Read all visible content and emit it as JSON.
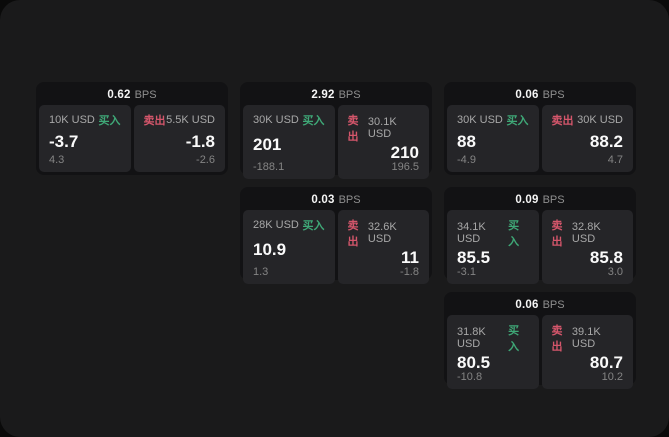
{
  "labels": {
    "bps_unit": "BPS",
    "buy": "买入",
    "sell": "卖出"
  },
  "colors": {
    "buy": "#3fa877",
    "sell": "#d5566b"
  },
  "cards": [
    {
      "row": 1,
      "col": 1,
      "bps": "0.62",
      "buy": {
        "size": "10K USD",
        "value": "-3.7",
        "sub": "4.3"
      },
      "sell": {
        "size": "5.5K USD",
        "value": "-1.8",
        "sub": "-2.6"
      }
    },
    {
      "row": 1,
      "col": 2,
      "bps": "2.92",
      "buy": {
        "size": "30K USD",
        "value": "201",
        "sub": "-188.1"
      },
      "sell": {
        "size": "30.1K USD",
        "value": "210",
        "sub": "196.5"
      }
    },
    {
      "row": 1,
      "col": 3,
      "bps": "0.06",
      "buy": {
        "size": "30K USD",
        "value": "88",
        "sub": "-4.9"
      },
      "sell": {
        "size": "30K USD",
        "value": "88.2",
        "sub": "4.7"
      }
    },
    {
      "row": 2,
      "col": 2,
      "bps": "0.03",
      "buy": {
        "size": "28K USD",
        "value": "10.9",
        "sub": "1.3"
      },
      "sell": {
        "size": "32.6K USD",
        "value": "11",
        "sub": "-1.8"
      }
    },
    {
      "row": 2,
      "col": 3,
      "bps": "0.09",
      "buy": {
        "size": "34.1K USD",
        "value": "85.5",
        "sub": "-3.1"
      },
      "sell": {
        "size": "32.8K USD",
        "value": "85.8",
        "sub": "3.0"
      }
    },
    {
      "row": 3,
      "col": 3,
      "bps": "0.06",
      "buy": {
        "size": "31.8K USD",
        "value": "80.5",
        "sub": "-10.8"
      },
      "sell": {
        "size": "39.1K USD",
        "value": "80.7",
        "sub": "10.2"
      }
    }
  ]
}
